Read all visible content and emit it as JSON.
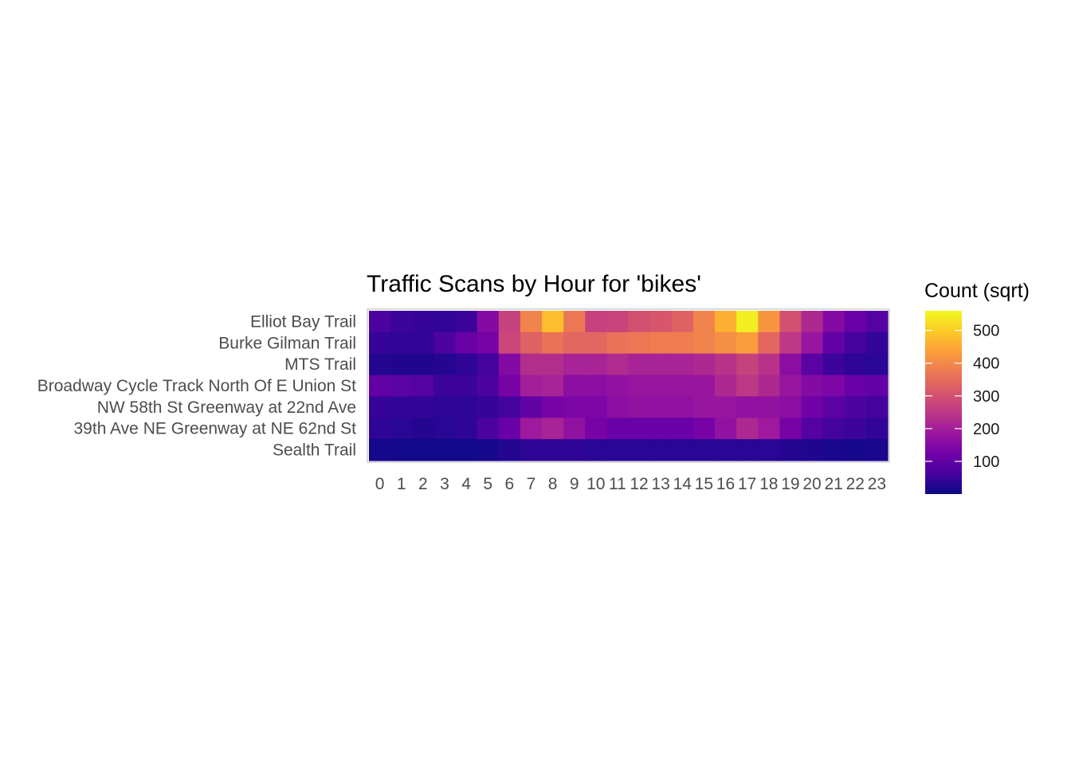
{
  "chart_data": {
    "type": "heatmap",
    "title": "Traffic Scans by Hour for 'bikes'",
    "xlabel": "",
    "ylabel": "",
    "x": [
      "0",
      "1",
      "2",
      "3",
      "4",
      "5",
      "6",
      "7",
      "8",
      "9",
      "10",
      "11",
      "12",
      "13",
      "14",
      "15",
      "16",
      "17",
      "18",
      "19",
      "20",
      "21",
      "22",
      "23"
    ],
    "y": [
      "Elliot Bay Trail",
      "Burke Gilman Trail",
      "MTS Trail",
      "Broadway Cycle Track North Of E Union St",
      "NW 58th St Greenway at 22nd Ave",
      "39th Ave NE Greenway at NE 62nd St",
      "Sealth Trail"
    ],
    "values": [
      [
        70,
        50,
        45,
        40,
        50,
        150,
        270,
        390,
        480,
        370,
        270,
        275,
        300,
        310,
        330,
        390,
        460,
        545,
        420,
        300,
        220,
        150,
        110,
        80
      ],
      [
        45,
        40,
        40,
        70,
        110,
        130,
        280,
        330,
        360,
        340,
        340,
        360,
        370,
        380,
        380,
        390,
        410,
        430,
        340,
        250,
        180,
        100,
        60,
        40
      ],
      [
        25,
        20,
        20,
        25,
        35,
        60,
        150,
        230,
        230,
        210,
        210,
        225,
        210,
        210,
        210,
        220,
        240,
        270,
        240,
        160,
        90,
        50,
        35,
        30
      ],
      [
        100,
        90,
        80,
        50,
        50,
        70,
        130,
        200,
        210,
        160,
        160,
        170,
        180,
        180,
        180,
        180,
        220,
        250,
        220,
        180,
        150,
        140,
        110,
        100
      ],
      [
        45,
        40,
        40,
        35,
        35,
        45,
        60,
        100,
        130,
        140,
        140,
        160,
        170,
        170,
        170,
        180,
        180,
        170,
        170,
        160,
        120,
        90,
        70,
        60
      ],
      [
        35,
        30,
        25,
        30,
        35,
        70,
        110,
        190,
        210,
        170,
        130,
        110,
        110,
        110,
        110,
        130,
        170,
        220,
        190,
        130,
        80,
        60,
        50,
        40
      ],
      [
        10,
        5,
        5,
        5,
        5,
        10,
        25,
        35,
        35,
        35,
        30,
        30,
        30,
        30,
        30,
        30,
        30,
        30,
        30,
        25,
        20,
        15,
        10,
        15
      ]
    ],
    "legend": {
      "title": "Count (sqrt)",
      "ticks": [
        100,
        200,
        300,
        400,
        500
      ],
      "range": [
        0,
        560
      ],
      "placement": "right"
    },
    "colorscale": "plasma",
    "grid": false
  }
}
